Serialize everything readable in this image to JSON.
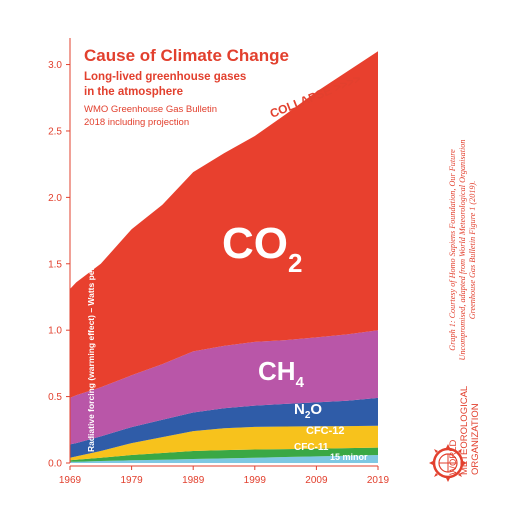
{
  "chart_data": {
    "type": "area",
    "title": "Cause of Climate Change",
    "subtitle": "Long-lived greenhouse gases in the atmosphere",
    "source_line1": "WMO Greenhouse Gas Bulletin",
    "source_line2": "2018 including projection",
    "ylabel": "Radiative forcing (warming effect) – Watts per square meter (W/m²)",
    "xlabel": "",
    "ylim": [
      0,
      3.2
    ],
    "xlim": [
      1969,
      2019
    ],
    "x_ticks": [
      "1969",
      "1979",
      "1989",
      "1999",
      "2009",
      "2019"
    ],
    "y_ticks": [
      "0.0",
      "0.5",
      "1.0",
      "1.5",
      "2.0",
      "2.5",
      "3.0"
    ],
    "x": [
      1969,
      1970,
      1974,
      1979,
      1984,
      1989,
      1994,
      1999,
      2004,
      2009,
      2014,
      2019
    ],
    "series": [
      {
        "name": "15 minor",
        "color": "#7ec8e3",
        "values": [
          0.01,
          0.01,
          0.015,
          0.02,
          0.025,
          0.03,
          0.035,
          0.04,
          0.045,
          0.05,
          0.055,
          0.06
        ]
      },
      {
        "name": "CFC-11",
        "color": "#3aa845",
        "values": [
          0.01,
          0.015,
          0.025,
          0.04,
          0.05,
          0.06,
          0.062,
          0.062,
          0.06,
          0.058,
          0.057,
          0.056
        ]
      },
      {
        "name": "CFC-12",
        "color": "#f7c21c",
        "values": [
          0.02,
          0.025,
          0.05,
          0.09,
          0.12,
          0.15,
          0.165,
          0.17,
          0.17,
          0.168,
          0.166,
          0.164
        ]
      },
      {
        "name": "N2O",
        "color": "#2f5ca8",
        "values": [
          0.1,
          0.1,
          0.11,
          0.12,
          0.13,
          0.14,
          0.15,
          0.16,
          0.17,
          0.18,
          0.19,
          0.21
        ]
      },
      {
        "name": "CH4",
        "color": "#b956a8",
        "values": [
          0.35,
          0.36,
          0.37,
          0.39,
          0.42,
          0.46,
          0.47,
          0.48,
          0.48,
          0.49,
          0.5,
          0.51
        ]
      },
      {
        "name": "CO2",
        "color": "#e8402e",
        "values": [
          0.82,
          0.85,
          0.93,
          1.1,
          1.2,
          1.35,
          1.45,
          1.55,
          1.7,
          1.85,
          1.98,
          2.1
        ]
      }
    ],
    "series_labels": {
      "co2_main": "CO",
      "co2_sub": "2",
      "ch4_main": "CH",
      "ch4_sub": "4",
      "n2o_a": "N",
      "n2o_sub": "2",
      "n2o_b": "O",
      "cfc12": "CFC-12",
      "cfc11": "CFC-11",
      "minor": "15 minor"
    },
    "annotation": "COLLAPSE >>>>",
    "grid": false
  },
  "credit": "Graph 1: Courtesy of Homo Sapiens Foundation, Our Future Uncompromised, adapted from World Meteorological Organisation Greenhouse Gas Bulletin Figure 1 (2019).",
  "org_name_lines": [
    "WORLD",
    "METEOROLOGICAL",
    "ORGANIZATION"
  ],
  "colors": {
    "accent": "#e2402e"
  }
}
